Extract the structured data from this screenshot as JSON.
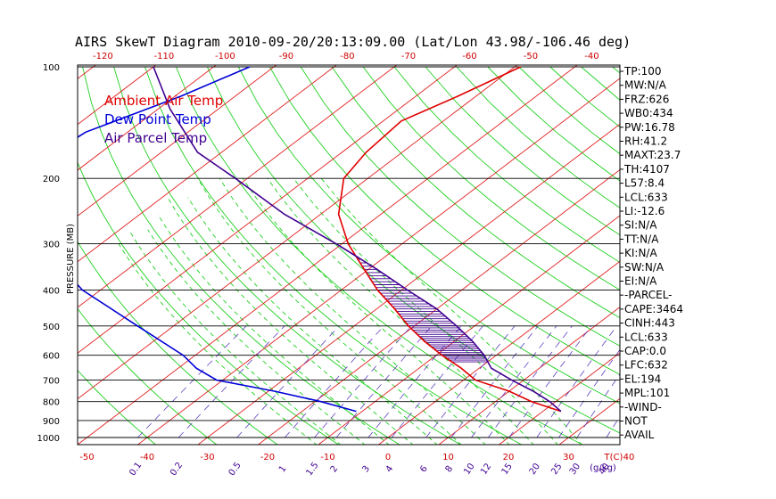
{
  "chart_data": {
    "type": "skew-t",
    "title": "AIRS SkewT Diagram 2010-09-20/20:13:09.00 (Lat/Lon 43.98/-106.46 deg)",
    "ylabel": "PRESSURE (MB)",
    "xlabel_unit": "T(C)",
    "mixing_ratio_unit": "(g/kg)",
    "grid": true,
    "pressure_levels": [
      100,
      200,
      300,
      400,
      500,
      600,
      700,
      800,
      900,
      1000
    ],
    "bottom_temp_ticks": [
      -50,
      -40,
      -30,
      -20,
      -10,
      0,
      10,
      20,
      30,
      40
    ],
    "top_temp_ticks": [
      -120,
      -110,
      -100,
      -90,
      -80,
      -70,
      -60,
      -50,
      -40
    ],
    "mixing_ratio_ticks": [
      "0.1",
      "0.2",
      "0.5",
      "1",
      "1.5",
      "2",
      "3",
      "4",
      "6",
      "8",
      "10",
      "12",
      "15",
      "20",
      "25",
      "30",
      "40"
    ],
    "legend": [
      {
        "label": "Ambient Air Temp",
        "color": "#e00000"
      },
      {
        "label": "Dew Point Temp",
        "color": "#0000d8"
      },
      {
        "label": "Air Parcel Temp",
        "color": "#400090"
      }
    ],
    "series": [
      {
        "name": "Ambient Air Temp",
        "color": "#e00000",
        "points": [
          [
            100,
            -59
          ],
          [
            120,
            -63
          ],
          [
            140,
            -67
          ],
          [
            170,
            -66
          ],
          [
            200,
            -64
          ],
          [
            250,
            -57
          ],
          [
            300,
            -49
          ],
          [
            350,
            -41
          ],
          [
            400,
            -34
          ],
          [
            450,
            -27
          ],
          [
            500,
            -21
          ],
          [
            550,
            -15
          ],
          [
            600,
            -9
          ],
          [
            650,
            -3
          ],
          [
            700,
            2
          ],
          [
            750,
            10
          ],
          [
            800,
            16
          ],
          [
            850,
            23
          ]
        ]
      },
      {
        "name": "Dew Point Temp",
        "color": "#0000d8",
        "points": [
          [
            100,
            -104
          ],
          [
            120,
            -109
          ],
          [
            150,
            -117
          ],
          [
            200,
            -119
          ],
          [
            250,
            -112
          ],
          [
            300,
            -101
          ],
          [
            350,
            -91
          ],
          [
            400,
            -83
          ],
          [
            500,
            -66
          ],
          [
            600,
            -52
          ],
          [
            650,
            -47
          ],
          [
            700,
            -41
          ],
          [
            750,
            -29
          ],
          [
            800,
            -19
          ],
          [
            850,
            -11
          ]
        ]
      },
      {
        "name": "Air Parcel Temp",
        "color": "#400090",
        "points": [
          [
            100,
            -120
          ],
          [
            130,
            -108
          ],
          [
            170,
            -94
          ],
          [
            200,
            -82
          ],
          [
            250,
            -66
          ],
          [
            300,
            -51
          ],
          [
            350,
            -39
          ],
          [
            400,
            -29
          ],
          [
            450,
            -20
          ],
          [
            500,
            -13
          ],
          [
            550,
            -7
          ],
          [
            600,
            -2
          ],
          [
            650,
            2
          ],
          [
            700,
            8
          ],
          [
            750,
            14
          ],
          [
            800,
            19
          ],
          [
            850,
            23
          ]
        ]
      }
    ],
    "indices": [
      "TP:100",
      "MW:N/A",
      "FRZ:626",
      "WB0:434",
      "PW:16.78",
      "RH:41.2",
      "MAXT:23.7",
      "TH:4107",
      "L57:8.4",
      "LCL:633",
      "LI:-12.6",
      "SI:N/A",
      "TT:N/A",
      "KI:N/A",
      "SW:N/A",
      "EI:N/A",
      "-PARCEL-",
      "CAPE:3464",
      "CINH:443",
      "LCL:633",
      "CAP:0.0",
      "LFC:632",
      "EL:194",
      "MPL:101",
      "-WIND-",
      "NOT",
      "AVAIL"
    ]
  }
}
